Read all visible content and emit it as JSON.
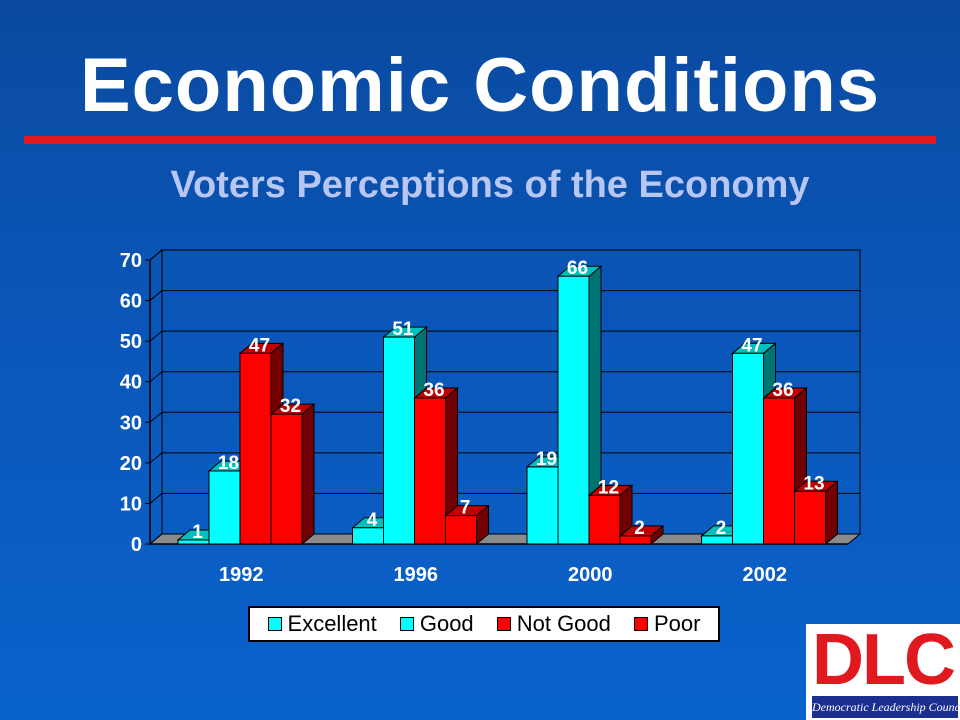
{
  "title": "Economic Conditions",
  "subtitle": "Voters Perceptions of the Economy",
  "colors": {
    "background": "#0a56b8",
    "title_rule": "#e0191e",
    "subtitle": "#b8c6f2",
    "cyan": "#00ffff",
    "red": "#ff0000"
  },
  "chart_data": {
    "type": "bar",
    "categories": [
      "1992",
      "1996",
      "2000",
      "2002"
    ],
    "series": [
      {
        "name": "Excellent",
        "values": [
          1,
          4,
          19,
          2
        ],
        "color": "#00ffff"
      },
      {
        "name": "Good",
        "values": [
          18,
          51,
          66,
          47
        ],
        "color": "#00ffff"
      },
      {
        "name": "Not Good",
        "values": [
          47,
          36,
          12,
          36
        ],
        "color": "#ff0000"
      },
      {
        "name": "Poor",
        "values": [
          32,
          7,
          2,
          13
        ],
        "color": "#ff0000"
      }
    ],
    "ylim": [
      0,
      70
    ],
    "yticks": [
      "0",
      "10",
      "20",
      "30",
      "40",
      "50",
      "60",
      "70"
    ],
    "grid": true,
    "legend": "bottom",
    "style": "3d-clustered"
  },
  "logo": {
    "letters": "DLC",
    "tagline": "Democratic Leadership Council"
  }
}
